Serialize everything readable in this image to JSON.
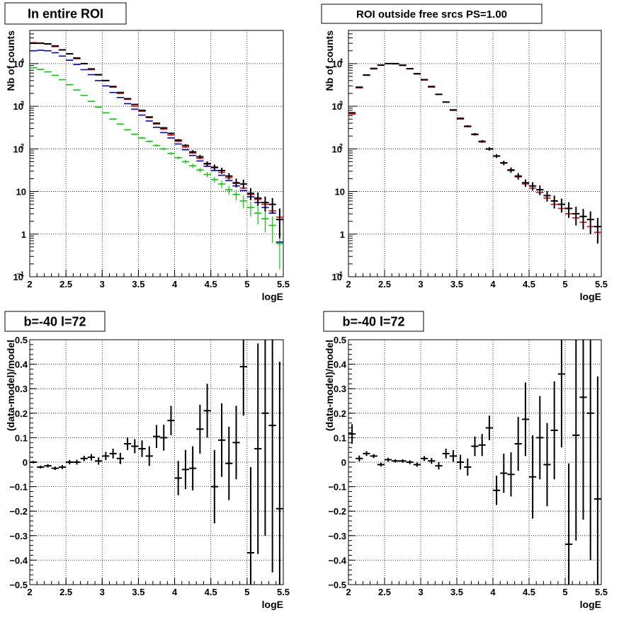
{
  "chart_data": [
    {
      "type": "scatter",
      "title": "In entire ROI",
      "xlabel": "logE",
      "ylabel": "Nb of counts",
      "xlim": [
        2,
        5.5
      ],
      "ylim": [
        0.1,
        60000
      ],
      "yscale": "log",
      "grid": true,
      "x_ticks": [
        "2",
        "2.5",
        "3",
        "3.5",
        "4",
        "4.5",
        "5",
        "5.5"
      ],
      "y_ticks": [
        {
          "value": 0.1,
          "base": "10",
          "exp": "−1"
        },
        {
          "value": 1,
          "base": "1",
          "exp": ""
        },
        {
          "value": 10,
          "base": "10",
          "exp": ""
        },
        {
          "value": 100,
          "base": "10",
          "exp": "2"
        },
        {
          "value": 1000,
          "base": "10",
          "exp": "3"
        },
        {
          "value": 10000,
          "base": "10",
          "exp": "4"
        }
      ],
      "bin_width": 0.1,
      "x": [
        2.05,
        2.15,
        2.25,
        2.35,
        2.45,
        2.55,
        2.65,
        2.75,
        2.85,
        2.95,
        3.05,
        3.15,
        3.25,
        3.35,
        3.45,
        3.55,
        3.65,
        3.75,
        3.85,
        3.95,
        4.05,
        4.15,
        4.25,
        4.35,
        4.45,
        4.55,
        4.65,
        4.75,
        4.85,
        4.95,
        5.05,
        5.15,
        5.25,
        5.35,
        5.45
      ],
      "series": [
        {
          "color": "#000000",
          "values": [
            30000,
            30000,
            29000,
            26000,
            21000,
            17000,
            13500,
            10000,
            7500,
            5500,
            4000,
            2900,
            2100,
            1500,
            1100,
            800,
            560,
            400,
            310,
            230,
            160,
            120,
            85,
            65,
            45,
            37,
            31,
            23,
            16,
            15,
            9,
            7,
            5.5,
            5,
            2.2
          ],
          "err_low": [
            29800,
            29800,
            28800,
            25800,
            20850,
            16850,
            13380,
            9900,
            7410,
            5430,
            3940,
            2850,
            2050,
            1460,
            1070,
            770,
            540,
            385,
            295,
            218,
            150,
            111,
            77,
            58,
            39,
            31,
            26,
            19,
            12.5,
            11.5,
            6.2,
            4.6,
            3.4,
            3,
            0.8
          ],
          "err_high": [
            30200,
            30200,
            29200,
            26200,
            21150,
            17150,
            13620,
            10100,
            7590,
            5570,
            4060,
            2950,
            2150,
            1540,
            1130,
            830,
            580,
            415,
            325,
            242,
            170,
            129,
            93,
            72,
            51,
            43,
            36,
            27,
            20,
            19,
            12,
            9.5,
            7.6,
            7,
            4
          ]
        },
        {
          "color": "#ff0000",
          "values": [
            31000,
            30500,
            28500,
            25000,
            21000,
            17000,
            13000,
            10000,
            7200,
            5400,
            4000,
            2800,
            2000,
            1450,
            1000,
            760,
            540,
            380,
            290,
            210,
            150,
            110,
            80,
            60,
            44,
            36,
            28,
            21,
            15.5,
            12,
            8.5,
            6.5,
            5,
            3.5,
            2.5
          ]
        },
        {
          "color": "#0000cc",
          "values": [
            20000,
            20500,
            20000,
            18000,
            15000,
            12000,
            9500,
            7200,
            5500,
            4000,
            3000,
            2100,
            1600,
            1150,
            850,
            620,
            450,
            320,
            240,
            180,
            130,
            95,
            70,
            52,
            39,
            31,
            24,
            18,
            13.5,
            10.5,
            7.5,
            5.5,
            4.2,
            3.1,
            0.65
          ]
        },
        {
          "color": "#00cc00",
          "values": [
            8000,
            7300,
            6400,
            5300,
            4200,
            3200,
            2400,
            1800,
            1300,
            950,
            700,
            500,
            380,
            280,
            220,
            180,
            150,
            120,
            100,
            78,
            62,
            50,
            40,
            32,
            25,
            19,
            15,
            11,
            8.5,
            6,
            4.2,
            3.1,
            2.3,
            1.6,
            0.6
          ],
          "err_low": [
            7900,
            7200,
            6320,
            5230,
            4140,
            3150,
            2360,
            1770,
            1270,
            925,
            680,
            485,
            365,
            268,
            210,
            171,
            142,
            113,
            93,
            72,
            57,
            45,
            35.5,
            28,
            21.5,
            16,
            12,
            8.5,
            6.2,
            4,
            2.6,
            1.7,
            1.1,
            0.62,
            0.15
          ],
          "err_high": [
            8100,
            7400,
            6480,
            5370,
            4260,
            3250,
            2440,
            1830,
            1330,
            975,
            720,
            515,
            395,
            292,
            230,
            189,
            158,
            127,
            107,
            84,
            67,
            55,
            44.5,
            36,
            28.5,
            22,
            18,
            13.5,
            10.8,
            8,
            5.8,
            4.5,
            3.5,
            2.6,
            1.05
          ]
        }
      ]
    },
    {
      "type": "scatter",
      "title": "ROI outside free srcs PS=1.00",
      "xlabel": "logE",
      "ylabel": "Nb of counts",
      "xlim": [
        2,
        5.5
      ],
      "ylim": [
        0.1,
        60000
      ],
      "yscale": "log",
      "grid": true,
      "x_ticks": [
        "2",
        "2.5",
        "3",
        "3.5",
        "4",
        "4.5",
        "5",
        "5.5"
      ],
      "y_ticks": [
        {
          "value": 0.1,
          "base": "10",
          "exp": "−1"
        },
        {
          "value": 1,
          "base": "1",
          "exp": ""
        },
        {
          "value": 10,
          "base": "10",
          "exp": ""
        },
        {
          "value": 100,
          "base": "10",
          "exp": "2"
        },
        {
          "value": 1000,
          "base": "10",
          "exp": "3"
        },
        {
          "value": 10000,
          "base": "10",
          "exp": "4"
        }
      ],
      "bin_width": 0.1,
      "x": [
        2.05,
        2.15,
        2.25,
        2.35,
        2.45,
        2.55,
        2.65,
        2.75,
        2.85,
        2.95,
        3.05,
        3.15,
        3.25,
        3.35,
        3.45,
        3.55,
        3.65,
        3.75,
        3.85,
        3.95,
        4.05,
        4.15,
        4.25,
        4.35,
        4.45,
        4.55,
        4.65,
        4.75,
        4.85,
        4.95,
        5.05,
        5.15,
        5.25,
        5.35,
        5.45
      ],
      "series": [
        {
          "color": "#000000",
          "values": [
            700,
            2800,
            5400,
            7700,
            9200,
            10000,
            10000,
            9200,
            7600,
            5800,
            4200,
            2900,
            1900,
            1250,
            820,
            520,
            340,
            220,
            150,
            100,
            68,
            47,
            32,
            23,
            16,
            13.5,
            11,
            8,
            6,
            5,
            4,
            3,
            2.6,
            2.2,
            1.5
          ],
          "err_low": [
            670,
            2740,
            5320,
            7610,
            9100,
            9900,
            9900,
            9100,
            7510,
            5720,
            4130,
            2850,
            1850,
            1210,
            790,
            500,
            322,
            206,
            139,
            91,
            61,
            41.5,
            27.5,
            19,
            12.8,
            10.5,
            8.2,
            5.8,
            4,
            3.2,
            2.4,
            1.6,
            1.3,
            1,
            0.6
          ],
          "err_high": [
            730,
            2860,
            5480,
            7790,
            9300,
            10100,
            10100,
            9300,
            7690,
            5880,
            4270,
            2950,
            1950,
            1290,
            850,
            540,
            358,
            234,
            161,
            109,
            75,
            52.5,
            36.5,
            27,
            19.2,
            16.5,
            13.8,
            10.2,
            8,
            6.8,
            5.6,
            4.4,
            3.9,
            3.4,
            2.4
          ]
        },
        {
          "color": "#ff0000",
          "values": [
            650,
            2700,
            5300,
            7500,
            9200,
            10000,
            9800,
            9000,
            7500,
            5700,
            4100,
            2800,
            1900,
            1250,
            800,
            500,
            330,
            215,
            145,
            98,
            67,
            46,
            31,
            22,
            15,
            12,
            9.5,
            7,
            5,
            4,
            3,
            2.4,
            1.9,
            1.5,
            1.1
          ]
        }
      ]
    },
    {
      "type": "scatter",
      "title": "b=-40 l=72",
      "xlabel": "logE",
      "ylabel": "(data-model)/model",
      "xlim": [
        2,
        5.5
      ],
      "ylim": [
        -0.5,
        0.5
      ],
      "yscale": "linear",
      "grid": true,
      "x_ticks": [
        "2",
        "2.5",
        "3",
        "3.5",
        "4",
        "4.5",
        "5",
        "5.5"
      ],
      "y_ticks": [
        "−0.5",
        "−0.4",
        "−0.3",
        "−0.2",
        "−0.1",
        "0",
        "0.1",
        "0.2",
        "0.3",
        "0.4",
        "0.5"
      ],
      "bin_width": 0.1,
      "x": [
        2.05,
        2.15,
        2.25,
        2.35,
        2.45,
        2.55,
        2.65,
        2.75,
        2.85,
        2.95,
        3.05,
        3.15,
        3.25,
        3.35,
        3.45,
        3.55,
        3.65,
        3.75,
        3.85,
        3.95,
        4.05,
        4.15,
        4.25,
        4.35,
        4.45,
        4.55,
        4.65,
        4.75,
        4.85,
        4.95,
        5.05,
        5.15,
        5.25,
        5.35,
        5.45
      ],
      "series": [
        {
          "color": "#000000",
          "values": [
            0,
            -0.02,
            -0.015,
            -0.025,
            -0.02,
            0,
            0,
            0.015,
            0.02,
            0.005,
            0.025,
            0.035,
            0.015,
            0.075,
            0.065,
            0.055,
            0.025,
            0.105,
            0.1,
            0.17,
            -0.065,
            -0.03,
            -0.025,
            0.135,
            0.21,
            -0.1,
            0.09,
            -0.005,
            0.08,
            0.39,
            -0.37,
            0.055,
            0.2,
            0.15,
            -0.19
          ],
          "errors": [
            0.005,
            0.006,
            0.007,
            0.007,
            0.008,
            0.009,
            0.01,
            0.011,
            0.013,
            0.015,
            0.017,
            0.02,
            0.023,
            0.026,
            0.029,
            0.034,
            0.04,
            0.047,
            0.053,
            0.06,
            0.07,
            0.08,
            0.09,
            0.1,
            0.11,
            0.15,
            0.15,
            0.15,
            0.15,
            0.2,
            0.35,
            0.43,
            0.5,
            0.6,
            0.6
          ]
        }
      ]
    },
    {
      "type": "scatter",
      "title": "b=-40 l=72",
      "xlabel": "logE",
      "ylabel": "(data-model)/model",
      "xlim": [
        2,
        5.5
      ],
      "ylim": [
        -0.5,
        0.5
      ],
      "yscale": "linear",
      "grid": true,
      "x_ticks": [
        "2",
        "2.5",
        "3",
        "3.5",
        "4",
        "4.5",
        "5",
        "5.5"
      ],
      "y_ticks": [
        "−0.5",
        "−0.4",
        "−0.3",
        "−0.2",
        "−0.1",
        "0",
        "0.1",
        "0.2",
        "0.3",
        "0.4",
        "0.5"
      ],
      "bin_width": 0.1,
      "x": [
        2.05,
        2.15,
        2.25,
        2.35,
        2.45,
        2.55,
        2.65,
        2.75,
        2.85,
        2.95,
        3.05,
        3.15,
        3.25,
        3.35,
        3.45,
        3.55,
        3.65,
        3.75,
        3.85,
        3.95,
        4.05,
        4.15,
        4.25,
        4.35,
        4.45,
        4.55,
        4.65,
        4.75,
        4.85,
        4.95,
        5.05,
        5.15,
        5.25,
        5.35,
        5.45
      ],
      "series": [
        {
          "color": "#000000",
          "values": [
            0.115,
            0.015,
            0.035,
            0.025,
            -0.01,
            0.01,
            0.005,
            0.005,
            0,
            -0.01,
            0.015,
            0.005,
            -0.015,
            0.035,
            0.025,
            0,
            -0.02,
            0.065,
            0.07,
            0.14,
            -0.115,
            -0.045,
            -0.05,
            0.075,
            0.175,
            -0.06,
            0.1,
            -0.01,
            0.13,
            0.36,
            -0.335,
            0.11,
            0.265,
            0.2,
            -0.15
          ],
          "errors": [
            0.04,
            0.012,
            0.01,
            0.008,
            0.008,
            0.008,
            0.007,
            0.007,
            0.008,
            0.009,
            0.01,
            0.012,
            0.015,
            0.02,
            0.024,
            0.03,
            0.035,
            0.04,
            0.045,
            0.05,
            0.06,
            0.08,
            0.09,
            0.11,
            0.15,
            0.17,
            0.17,
            0.17,
            0.2,
            0.3,
            0.33,
            0.43,
            0.5,
            0.6,
            0.5
          ]
        }
      ]
    }
  ]
}
